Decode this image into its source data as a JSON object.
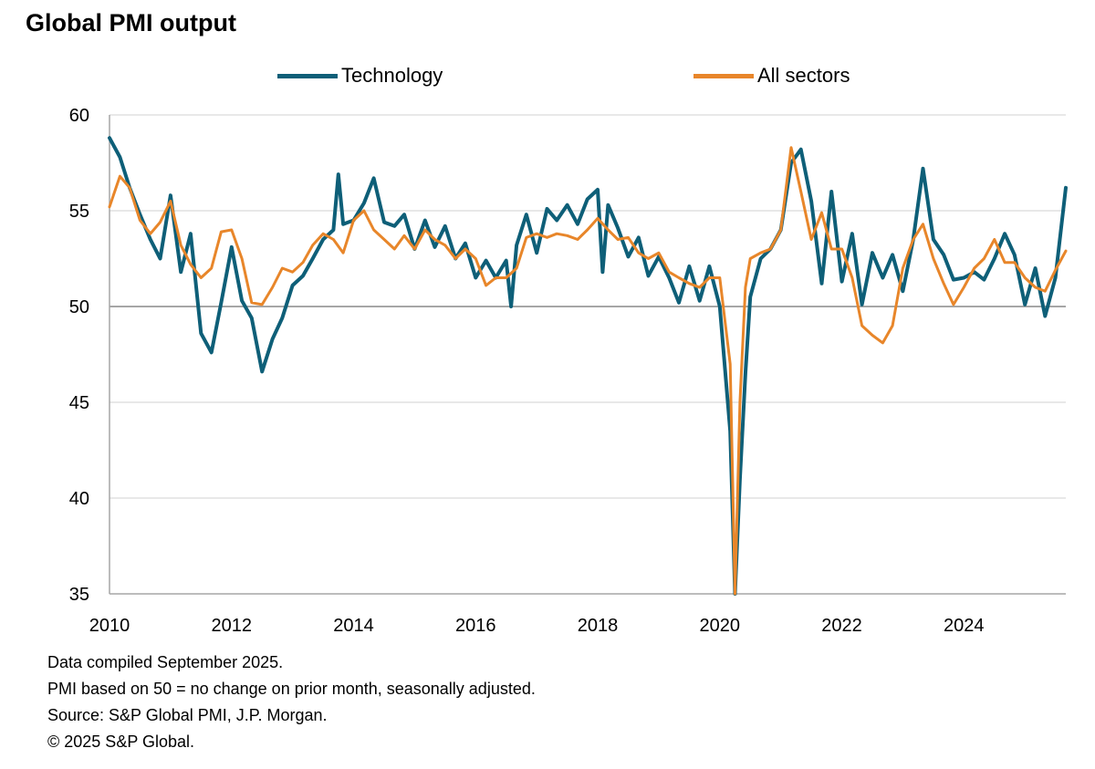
{
  "title": "Global PMI output",
  "colors": {
    "technology": "#0e5f78",
    "all_sectors": "#e8862a",
    "grid": "#d9d9d9",
    "axis": "#a6a6a6",
    "ref_line": "#a6a6a6"
  },
  "legend": [
    {
      "label": "Technology",
      "color": "#0e5f78"
    },
    {
      "label": "All sectors",
      "color": "#e8862a"
    }
  ],
  "notes": [
    "Data compiled September 2025.",
    "PMI based on 50 = no change on prior month, seasonally adjusted.",
    "Source: S&P Global PMI, J.P. Morgan.",
    "© 2025 S&P Global."
  ],
  "chart_data": {
    "type": "line",
    "title": "Global PMI output",
    "xlabel": "",
    "ylabel": "",
    "xlim": [
      2010.0,
      2025.67
    ],
    "ylim": [
      35,
      60
    ],
    "yticks": [
      35,
      40,
      45,
      50,
      55,
      60
    ],
    "xticks": [
      2010,
      2012,
      2014,
      2016,
      2018,
      2020,
      2022,
      2024
    ],
    "ytick_labels": [
      "35",
      "40",
      "45",
      "50",
      "55",
      "60"
    ],
    "xtick_labels": [
      "2010",
      "2012",
      "2014",
      "2016",
      "2018",
      "2020",
      "2022",
      "2024"
    ],
    "reference_line": 50,
    "grid": "horizontal",
    "legend_position": "top",
    "series": [
      {
        "name": "Technology",
        "color": "#0e5f78",
        "x": [
          2010.0,
          2010.17,
          2010.33,
          2010.5,
          2010.67,
          2010.83,
          2011.0,
          2011.17,
          2011.33,
          2011.5,
          2011.67,
          2011.83,
          2012.0,
          2012.17,
          2012.33,
          2012.5,
          2012.67,
          2012.83,
          2013.0,
          2013.17,
          2013.33,
          2013.5,
          2013.67,
          2013.75,
          2013.83,
          2014.0,
          2014.17,
          2014.33,
          2014.5,
          2014.67,
          2014.83,
          2015.0,
          2015.17,
          2015.33,
          2015.5,
          2015.67,
          2015.83,
          2016.0,
          2016.17,
          2016.33,
          2016.5,
          2016.58,
          2016.67,
          2016.83,
          2017.0,
          2017.17,
          2017.33,
          2017.5,
          2017.67,
          2017.83,
          2018.0,
          2018.08,
          2018.17,
          2018.33,
          2018.5,
          2018.67,
          2018.83,
          2019.0,
          2019.17,
          2019.33,
          2019.5,
          2019.67,
          2019.83,
          2020.0,
          2020.17,
          2020.25,
          2020.33,
          2020.42,
          2020.5,
          2020.67,
          2020.83,
          2021.0,
          2021.17,
          2021.33,
          2021.5,
          2021.67,
          2021.83,
          2022.0,
          2022.17,
          2022.33,
          2022.5,
          2022.67,
          2022.83,
          2023.0,
          2023.17,
          2023.33,
          2023.5,
          2023.67,
          2023.83,
          2024.0,
          2024.17,
          2024.33,
          2024.5,
          2024.67,
          2024.83,
          2025.0,
          2025.17,
          2025.33,
          2025.5,
          2025.67
        ],
        "values": [
          58.8,
          57.8,
          56.2,
          54.8,
          53.5,
          52.5,
          55.8,
          51.8,
          53.8,
          48.6,
          47.6,
          50.2,
          53.1,
          50.3,
          49.4,
          46.6,
          48.3,
          49.4,
          51.1,
          51.6,
          52.5,
          53.5,
          54.0,
          56.9,
          54.3,
          54.5,
          55.4,
          56.7,
          54.4,
          54.2,
          54.8,
          53.0,
          54.5,
          53.1,
          54.2,
          52.5,
          53.3,
          51.5,
          52.4,
          51.5,
          52.4,
          50.0,
          53.2,
          54.8,
          52.8,
          55.1,
          54.5,
          55.3,
          54.3,
          55.6,
          56.1,
          51.8,
          55.3,
          54.1,
          52.6,
          53.6,
          51.6,
          52.6,
          51.5,
          50.2,
          52.1,
          50.3,
          52.1,
          50.0,
          43.5,
          35.0,
          41.0,
          46.5,
          50.5,
          52.5,
          53.0,
          54.0,
          57.5,
          58.2,
          55.5,
          51.2,
          56.0,
          51.3,
          53.8,
          50.1,
          52.8,
          51.5,
          52.7,
          50.8,
          53.5,
          57.2,
          53.5,
          52.7,
          51.4,
          51.5,
          51.8,
          51.4,
          52.5,
          53.8,
          52.7,
          50.1,
          52.0,
          49.5,
          51.5,
          56.2
        ]
      },
      {
        "name": "All sectors",
        "color": "#e8862a",
        "x": [
          2010.0,
          2010.17,
          2010.33,
          2010.5,
          2010.67,
          2010.83,
          2011.0,
          2011.17,
          2011.33,
          2011.5,
          2011.67,
          2011.83,
          2012.0,
          2012.17,
          2012.33,
          2012.5,
          2012.67,
          2012.83,
          2013.0,
          2013.17,
          2013.33,
          2013.5,
          2013.67,
          2013.83,
          2014.0,
          2014.17,
          2014.33,
          2014.5,
          2014.67,
          2014.83,
          2015.0,
          2015.17,
          2015.33,
          2015.5,
          2015.67,
          2015.83,
          2016.0,
          2016.17,
          2016.33,
          2016.5,
          2016.67,
          2016.83,
          2017.0,
          2017.17,
          2017.33,
          2017.5,
          2017.67,
          2017.83,
          2018.0,
          2018.17,
          2018.33,
          2018.5,
          2018.67,
          2018.83,
          2019.0,
          2019.17,
          2019.33,
          2019.5,
          2019.67,
          2019.83,
          2020.0,
          2020.17,
          2020.25,
          2020.33,
          2020.42,
          2020.5,
          2020.67,
          2020.83,
          2021.0,
          2021.17,
          2021.33,
          2021.5,
          2021.67,
          2021.83,
          2022.0,
          2022.17,
          2022.33,
          2022.5,
          2022.67,
          2022.83,
          2023.0,
          2023.17,
          2023.33,
          2023.5,
          2023.67,
          2023.83,
          2024.0,
          2024.17,
          2024.33,
          2024.5,
          2024.67,
          2024.83,
          2025.0,
          2025.17,
          2025.33,
          2025.5,
          2025.67
        ],
        "values": [
          55.2,
          56.8,
          56.2,
          54.5,
          53.8,
          54.4,
          55.5,
          53.2,
          52.2,
          51.5,
          52.0,
          53.9,
          54.0,
          52.5,
          50.2,
          50.1,
          51.0,
          52.0,
          51.8,
          52.3,
          53.2,
          53.8,
          53.5,
          52.8,
          54.5,
          55.0,
          54.0,
          53.5,
          53.0,
          53.7,
          53.0,
          54.0,
          53.5,
          53.2,
          52.5,
          53.0,
          52.5,
          51.1,
          51.5,
          51.5,
          52.0,
          53.6,
          53.8,
          53.6,
          53.8,
          53.7,
          53.5,
          54.0,
          54.6,
          54.0,
          53.5,
          53.6,
          52.8,
          52.5,
          52.8,
          51.8,
          51.5,
          51.2,
          51.0,
          51.5,
          51.5,
          47.0,
          35.0,
          45.0,
          51.0,
          52.5,
          52.8,
          53.0,
          54.0,
          58.3,
          56.0,
          53.5,
          54.9,
          53.0,
          53.0,
          51.5,
          49.0,
          48.5,
          48.1,
          49.0,
          52.0,
          53.5,
          54.3,
          52.5,
          51.2,
          50.1,
          51.0,
          52.0,
          52.5,
          53.5,
          52.3,
          52.3,
          51.5,
          51.0,
          50.8,
          51.9,
          52.9
        ]
      }
    ]
  }
}
